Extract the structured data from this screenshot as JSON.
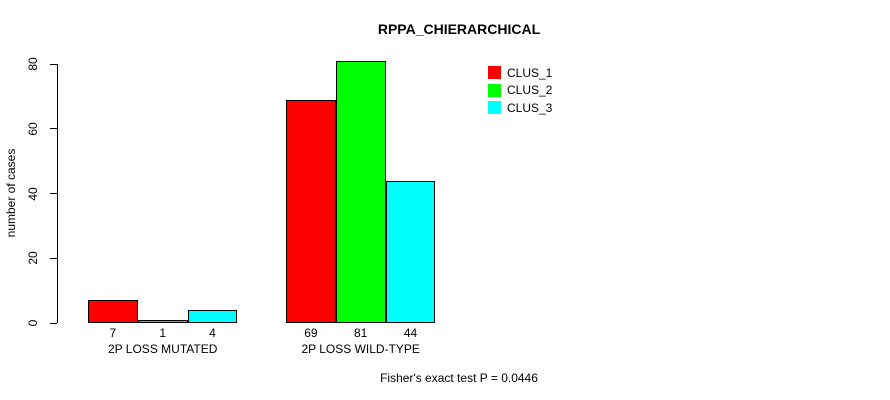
{
  "title": "RPPA_CHIERARCHICAL",
  "footer": "Fisher's exact test P = 0.0446",
  "chart_data": {
    "type": "bar",
    "title": "RPPA_CHIERARCHICAL",
    "ylabel": "number of cases",
    "xlabel": "",
    "categories": [
      "2P LOSS MUTATED",
      "2P LOSS WILD-TYPE"
    ],
    "series": [
      {
        "name": "CLUS_1",
        "color": "#ff0000",
        "values": [
          7,
          69
        ]
      },
      {
        "name": "CLUS_2",
        "color": "#00ff00",
        "values": [
          1,
          81
        ]
      },
      {
        "name": "CLUS_3",
        "color": "#00ffff",
        "values": [
          4,
          44
        ]
      }
    ],
    "yticks": [
      0,
      20,
      40,
      60,
      80
    ],
    "ylim": [
      0,
      81
    ],
    "grid": false,
    "legend_position": "top-right",
    "bar_value_labels_shown": true,
    "annotation": "Fisher's exact test P = 0.0446"
  }
}
